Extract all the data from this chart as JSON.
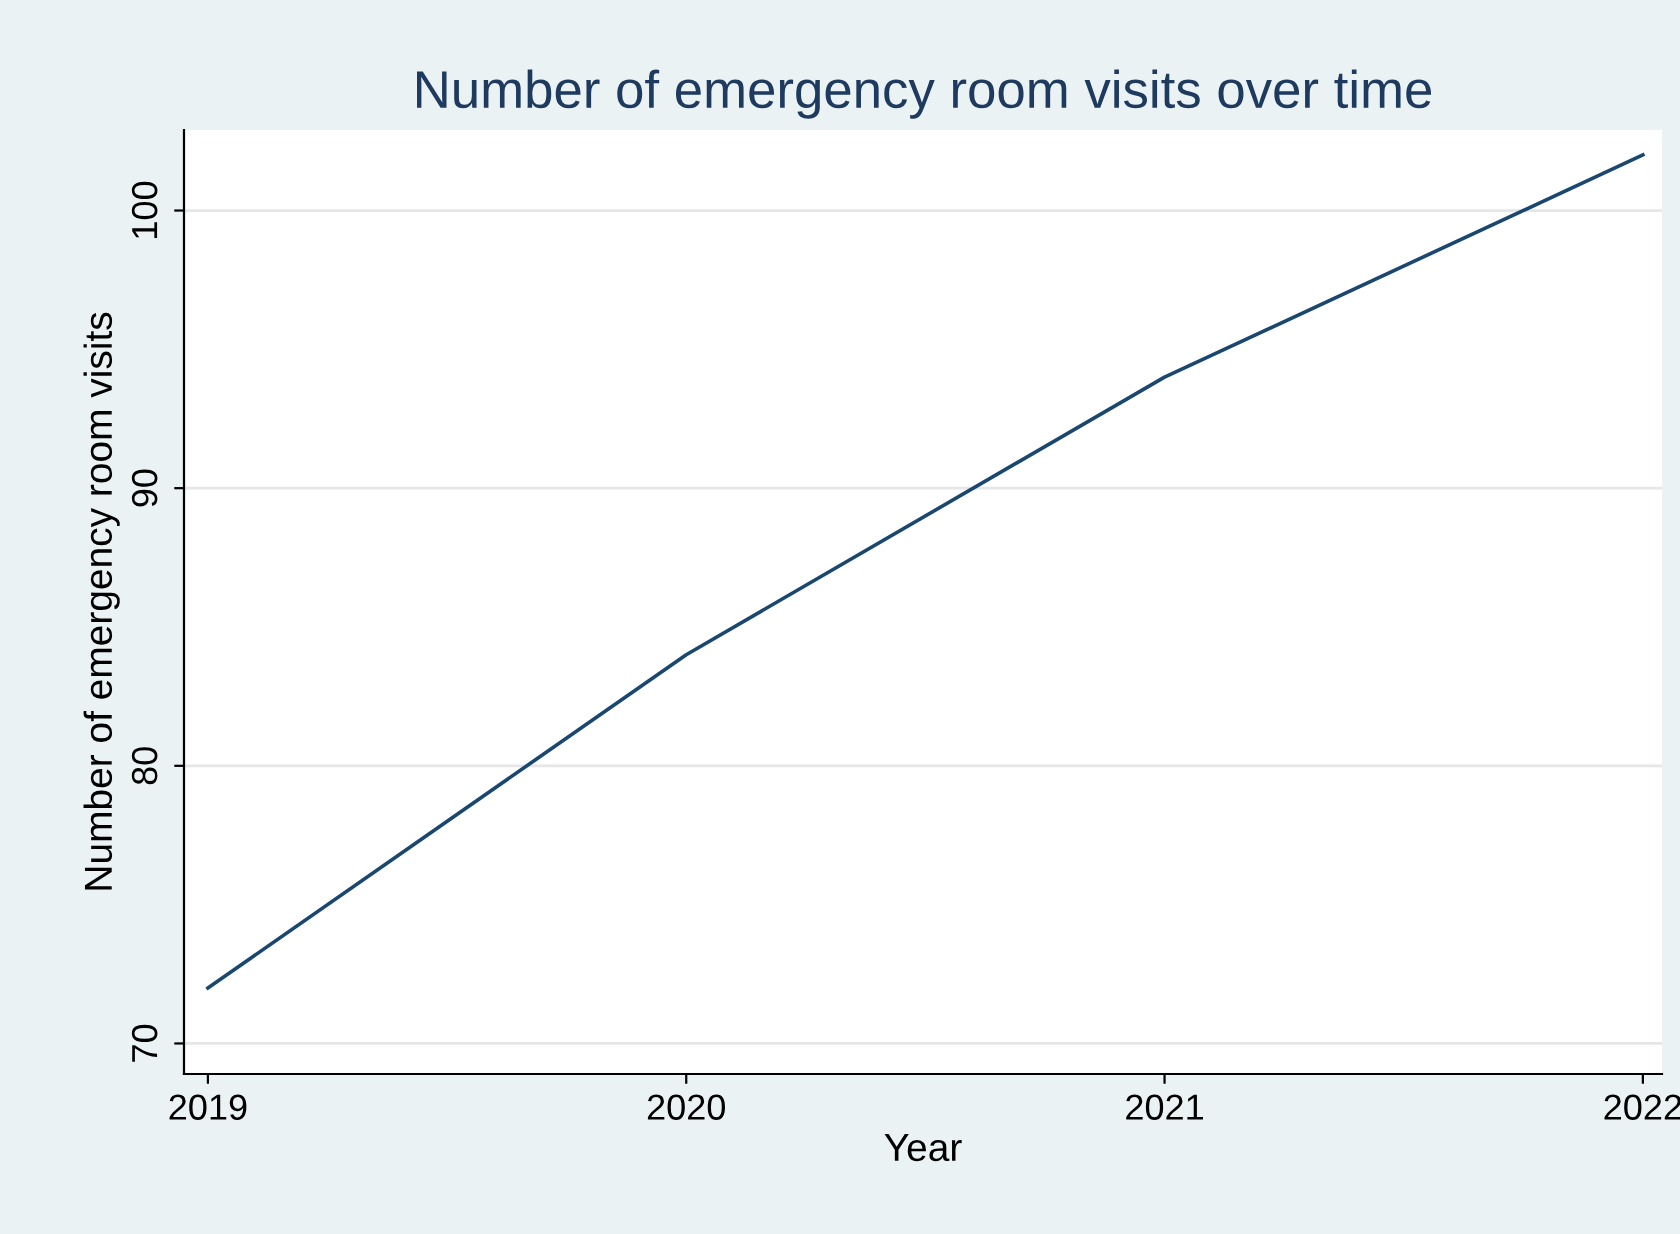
{
  "chart_data": {
    "type": "line",
    "title": "Number of emergency room visits over time",
    "xlabel": "Year",
    "ylabel": "Number of emergency room visits",
    "x": [
      2019,
      2020,
      2021,
      2022
    ],
    "series": [
      {
        "color": "#1a476f",
        "values": [
          72,
          84,
          94,
          102
        ]
      }
    ],
    "xlim": [
      2018.95,
      2022.04
    ],
    "xticks": [
      2019,
      2020,
      2021,
      2022
    ],
    "ylim": [
      68.9,
      102.9
    ],
    "yticks": [
      70,
      80,
      90,
      100
    ],
    "grid": "y",
    "line_style": "solid",
    "legend": false
  }
}
